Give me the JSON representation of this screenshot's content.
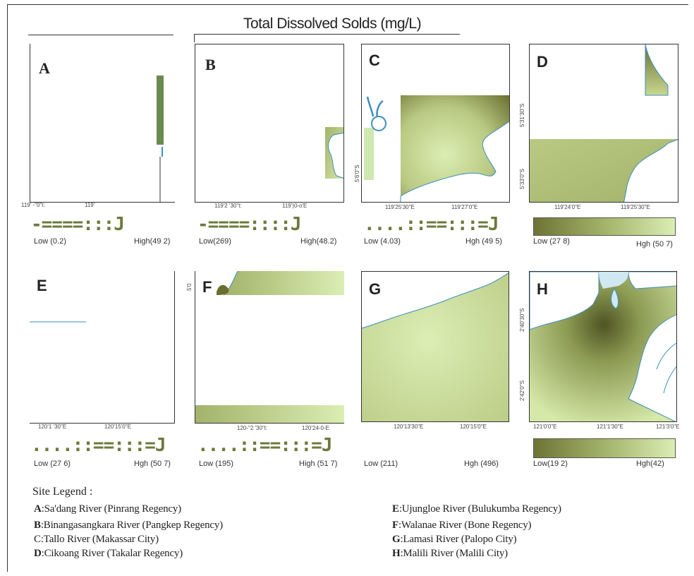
{
  "title": "Total Dissolved Solds (mg/L)",
  "colors": {
    "low": "#dbeeb4",
    "mid": "#a3b36a",
    "high": "#5f6a2c",
    "water": "#cfe8f2",
    "coast": "#3c8fbf"
  },
  "panels": [
    {
      "id": "A",
      "xticks": [
        "119' -\"0\"t:",
        "119'"
      ],
      "scale_text": "-====:::J",
      "low": "Low (0.2)",
      "high": "High(49 2)"
    },
    {
      "id": "B",
      "xticks": [
        "119'2 '30\"t:",
        "119')0-o'E"
      ],
      "scale_text": "-====::::J",
      "low": "Low(269)",
      "high": "High(48.2)"
    },
    {
      "id": "C",
      "xticks": [
        "119'25'30\"E",
        "119'27'0\"E"
      ],
      "yticks": [
        "5'6'0\"S"
      ],
      "scale_text": "....::==:::=J",
      "low": "Low (4.03)",
      "high": "Hgh (49 5)"
    },
    {
      "id": "D",
      "xticks": [
        "119'24'0\"E",
        "119'25'30\"E"
      ],
      "yticks": [
        "5'31'30\"S",
        "5'33'0\"S"
      ],
      "low": "Low (27 8)",
      "high": "Hgh (50 7)"
    },
    {
      "id": "E",
      "xticks": [
        "120'1 '30\"E",
        "120'15'0\"E"
      ],
      "scale_text": "....::==:::=J",
      "low": "Low (27 6)",
      "high": "Hgh (50 7)"
    },
    {
      "id": "F",
      "xticks": [
        "120-\"2 '30\"t:",
        "120'24-0-E"
      ],
      "yticks": [
        "5'0"
      ],
      "scale_text": "....::==:::=J",
      "low": "Low (195)",
      "high": "High (51 7)"
    },
    {
      "id": "G",
      "xticks": [
        "120'13'30\"E",
        "120'15'0\"E"
      ],
      "low": "Low (211)",
      "high": "Hgh (496)"
    },
    {
      "id": "H",
      "xticks": [
        "121'0'0\"E",
        "121'1'30\"E",
        "121'3'0\"E"
      ],
      "yticks": [
        "2'40'30\"S",
        "2'42'0\"S"
      ],
      "low": "Low(19 2)",
      "high": "Hgh(42)"
    }
  ],
  "legend": {
    "title": "Site Legend :",
    "items": [
      {
        "key": "A",
        "text": ":Sa'dang River (Pinrang Regency)"
      },
      {
        "key": "B",
        "text": ":Binangasangkara River (Pangkep Regency)"
      },
      {
        "key": "C",
        "text": ":Tallo River (Makassar City)"
      },
      {
        "key": "D",
        "text": ":Cikoang River (Takalar Regency)"
      },
      {
        "key": "E",
        "text": ":Ujungloe River (Bulukumba Regency)"
      },
      {
        "key": "F",
        "text": ":Walanae River (Bone Regency)"
      },
      {
        "key": "G",
        "text": ":Lamasi River (Palopo City)"
      },
      {
        "key": "H",
        "text": ":Malili River (Malili City)"
      }
    ]
  }
}
